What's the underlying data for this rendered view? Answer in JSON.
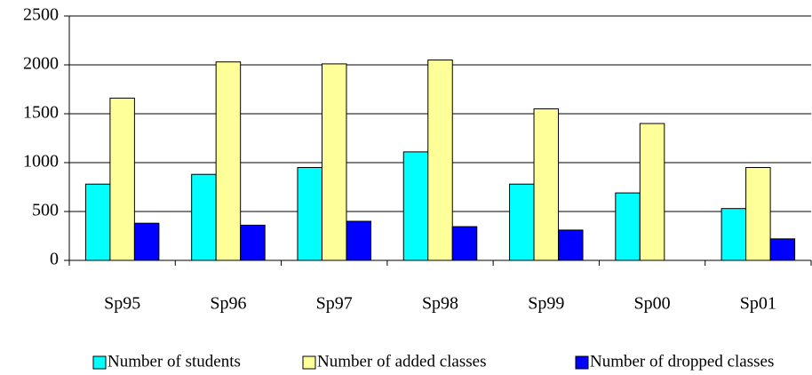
{
  "chart_data": {
    "type": "bar",
    "categories": [
      "Sp95",
      "Sp96",
      "Sp97",
      "Sp98",
      "Sp99",
      "Sp00",
      "Sp01"
    ],
    "series": [
      {
        "name": "Number of students",
        "color": "#00ffff",
        "values": [
          780,
          880,
          950,
          1110,
          780,
          690,
          530
        ]
      },
      {
        "name": "Number of added classes",
        "color": "#ffff99",
        "values": [
          1660,
          2030,
          2010,
          2050,
          1550,
          1400,
          950
        ]
      },
      {
        "name": "Number of dropped classes",
        "color": "#0000ff",
        "values": [
          380,
          360,
          400,
          345,
          310,
          null,
          220
        ]
      }
    ],
    "ylim": [
      0,
      2500
    ],
    "yticks": [
      0,
      500,
      1000,
      1500,
      2000,
      2500
    ],
    "grid": true,
    "legend": "bottom"
  }
}
